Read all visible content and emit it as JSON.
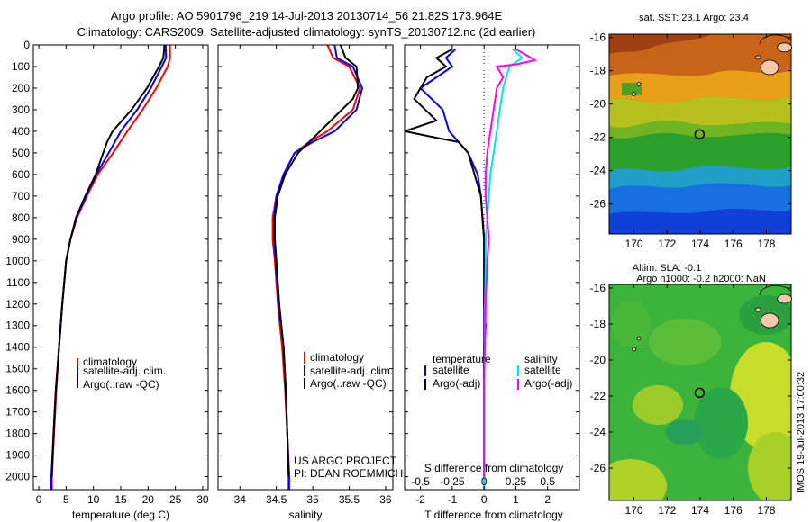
{
  "title_line1": "Argo profile: AO 5901796_219 14-Jul-2013 20130714_56 21.82S 173.964E",
  "title_line2": "Climatology: CARS2009. Satellite-adjusted climatology: synTS_20130712.nc (2d earlier)",
  "side_timestamp": "IMOS 19-Jul-2013 17:00:32",
  "colors": {
    "climatology": "#ff0000",
    "satellite": "#0000ff",
    "argo": "#000000",
    "sal_satellite": "#00e5e5",
    "sal_argo": "#ff00ff",
    "marker": "#000000"
  },
  "chart_data": [
    {
      "type": "line",
      "id": "temperature",
      "xlabel": "temperature (deg C)",
      "ylabel": "",
      "xlim": [
        -1,
        31
      ],
      "ylim": [
        2060,
        0
      ],
      "xticks": [
        0,
        5,
        10,
        15,
        20,
        25,
        30
      ],
      "yticks": [
        0,
        100,
        200,
        300,
        400,
        500,
        600,
        700,
        800,
        900,
        1000,
        1100,
        1200,
        1300,
        1400,
        1500,
        1600,
        1700,
        1800,
        1900,
        2000
      ],
      "legend": [
        "climatology",
        "satellite-adj. clim.",
        "Argo(..raw -QC)"
      ],
      "series": [
        {
          "name": "climatology",
          "color": "#ff0000",
          "points": [
            [
              24.0,
              0
            ],
            [
              24.0,
              60
            ],
            [
              23.6,
              100
            ],
            [
              21.5,
              200
            ],
            [
              19.0,
              300
            ],
            [
              16.2,
              400
            ],
            [
              13.6,
              500
            ],
            [
              10.8,
              600
            ],
            [
              8.8,
              700
            ],
            [
              7.0,
              800
            ],
            [
              5.8,
              900
            ],
            [
              5.0,
              1000
            ],
            [
              4.3,
              1200
            ],
            [
              3.7,
              1400
            ],
            [
              3.2,
              1600
            ],
            [
              2.8,
              1800
            ],
            [
              2.4,
              2000
            ],
            [
              2.4,
              2060
            ]
          ]
        },
        {
          "name": "satellite-adj. clim.",
          "color": "#0000ff",
          "points": [
            [
              23.2,
              0
            ],
            [
              23.3,
              60
            ],
            [
              22.5,
              100
            ],
            [
              20.5,
              200
            ],
            [
              18.0,
              300
            ],
            [
              15.0,
              400
            ],
            [
              12.8,
              500
            ],
            [
              10.5,
              600
            ],
            [
              8.6,
              700
            ],
            [
              6.9,
              800
            ],
            [
              5.8,
              900
            ],
            [
              5.0,
              1000
            ],
            [
              4.3,
              1200
            ],
            [
              3.7,
              1400
            ],
            [
              3.1,
              1600
            ],
            [
              2.7,
              1800
            ],
            [
              2.3,
              2000
            ],
            [
              2.3,
              2060
            ]
          ]
        },
        {
          "name": "Argo(..raw -QC)",
          "color": "#000000",
          "points": [
            [
              23.0,
              0
            ],
            [
              22.8,
              60
            ],
            [
              22.0,
              100
            ],
            [
              19.8,
              200
            ],
            [
              17.0,
              300
            ],
            [
              13.5,
              400
            ],
            [
              12.5,
              450
            ],
            [
              10.4,
              600
            ],
            [
              8.5,
              700
            ],
            [
              6.8,
              800
            ],
            [
              5.8,
              900
            ],
            [
              5.0,
              1000
            ],
            [
              4.3,
              1200
            ],
            [
              3.7,
              1400
            ],
            [
              3.1,
              1600
            ],
            [
              2.7,
              1800
            ],
            [
              2.4,
              2000
            ]
          ]
        }
      ]
    },
    {
      "type": "line",
      "id": "salinity",
      "xlabel": "salinity",
      "ylabel": "",
      "xlim": [
        33.7,
        36.1
      ],
      "ylim": [
        2060,
        0
      ],
      "xticks": [
        34,
        34.5,
        35,
        35.5,
        36
      ],
      "xticklabels": [
        "34",
        "34.5",
        "35",
        "35.5",
        "36"
      ],
      "legend": [
        "climatology",
        "satellite-adj. clim.",
        "Argo(..raw -QC)"
      ],
      "annotation": [
        "US ARGO PROJECT",
        "PI: DEAN ROEMMICH"
      ],
      "series": [
        {
          "name": "climatology",
          "color": "#ff0000",
          "points": [
            [
              35.2,
              0
            ],
            [
              35.28,
              60
            ],
            [
              35.5,
              100
            ],
            [
              35.65,
              200
            ],
            [
              35.55,
              300
            ],
            [
              35.2,
              400
            ],
            [
              34.95,
              450
            ],
            [
              34.75,
              500
            ],
            [
              34.6,
              600
            ],
            [
              34.5,
              700
            ],
            [
              34.45,
              800
            ],
            [
              34.45,
              900
            ],
            [
              34.48,
              1000
            ],
            [
              34.52,
              1200
            ],
            [
              34.58,
              1400
            ],
            [
              34.62,
              1600
            ],
            [
              34.65,
              1800
            ],
            [
              34.68,
              2000
            ],
            [
              34.68,
              2060
            ]
          ]
        },
        {
          "name": "satellite-adj. clim.",
          "color": "#0000ff",
          "points": [
            [
              35.3,
              0
            ],
            [
              35.33,
              60
            ],
            [
              35.55,
              100
            ],
            [
              35.68,
              200
            ],
            [
              35.6,
              300
            ],
            [
              35.3,
              400
            ],
            [
              35.0,
              450
            ],
            [
              34.75,
              500
            ],
            [
              34.6,
              600
            ],
            [
              34.5,
              700
            ],
            [
              34.47,
              800
            ],
            [
              34.47,
              900
            ],
            [
              34.49,
              1000
            ],
            [
              34.53,
              1200
            ],
            [
              34.6,
              1400
            ],
            [
              34.63,
              1600
            ],
            [
              34.65,
              1800
            ],
            [
              34.67,
              2000
            ],
            [
              34.67,
              2060
            ]
          ]
        },
        {
          "name": "Argo(..raw -QC)",
          "color": "#000000",
          "points": [
            [
              35.38,
              0
            ],
            [
              35.45,
              60
            ],
            [
              35.6,
              100
            ],
            [
              35.62,
              200
            ],
            [
              35.55,
              250
            ],
            [
              35.4,
              300
            ],
            [
              35.1,
              400
            ],
            [
              34.8,
              500
            ],
            [
              34.62,
              600
            ],
            [
              34.52,
              700
            ],
            [
              34.48,
              800
            ],
            [
              34.48,
              900
            ],
            [
              34.5,
              1000
            ],
            [
              34.54,
              1200
            ],
            [
              34.6,
              1400
            ],
            [
              34.63,
              1600
            ],
            [
              34.65,
              1800
            ],
            [
              34.67,
              2000
            ]
          ]
        }
      ]
    },
    {
      "type": "line",
      "id": "difference",
      "xlabel": "T difference from climatology",
      "xlabel_top": "S difference from climatology",
      "ylabel": "",
      "xlim": [
        -2.5,
        3.0
      ],
      "ylim": [
        2060,
        0
      ],
      "xticks": [
        -2,
        -1,
        0,
        1,
        2
      ],
      "xticks_top": [
        -0.5,
        -0.25,
        0,
        0.25,
        0.5
      ],
      "xticklabels_top": [
        "-0.5",
        "-0.25",
        "0",
        "0.25",
        "0.5"
      ],
      "s_scale": 0.25,
      "legend_temperature_title": "temperature",
      "legend_salinity_title": "salinity",
      "legend": [
        "satellite",
        "Argo(-adj)",
        "satellite",
        "Argo(-adj)"
      ],
      "series": [
        {
          "name": "satellite",
          "group": "temperature",
          "color": "#0000ff",
          "points": [
            [
              -0.9,
              20
            ],
            [
              -1.2,
              60
            ],
            [
              -1.0,
              100
            ],
            [
              -1.5,
              150
            ],
            [
              -2.0,
              200
            ],
            [
              -1.3,
              300
            ],
            [
              -1.1,
              400
            ],
            [
              -0.5,
              500
            ],
            [
              -0.2,
              600
            ],
            [
              -0.1,
              700
            ],
            [
              -0.05,
              800
            ],
            [
              0,
              900
            ],
            [
              0,
              1000
            ],
            [
              0,
              1200
            ],
            [
              0,
              1400
            ],
            [
              0,
              1600
            ],
            [
              0,
              1800
            ],
            [
              0,
              2000
            ],
            [
              0,
              2060
            ]
          ]
        },
        {
          "name": "Argo(-adj)",
          "group": "temperature",
          "color": "#000000",
          "points": [
            [
              -1.0,
              20
            ],
            [
              -1.5,
              60
            ],
            [
              -1.2,
              100
            ],
            [
              -1.8,
              150
            ],
            [
              -2.2,
              250
            ],
            [
              -1.5,
              350
            ],
            [
              -2.5,
              400
            ],
            [
              -1.5,
              430
            ],
            [
              -0.8,
              450
            ],
            [
              -0.5,
              500
            ],
            [
              -0.3,
              600
            ],
            [
              -0.1,
              700
            ],
            [
              -0.05,
              800
            ],
            [
              0,
              900
            ],
            [
              0,
              1000
            ],
            [
              0,
              1200
            ],
            [
              0.05,
              1300
            ],
            [
              0,
              1400
            ],
            [
              0,
              1600
            ],
            [
              0,
              1800
            ],
            [
              0,
              2000
            ]
          ]
        },
        {
          "name": "satellite",
          "group": "salinity",
          "color": "#00e5e5",
          "points": [
            [
              0.9,
              20
            ],
            [
              1.2,
              60
            ],
            [
              0.8,
              100
            ],
            [
              0.6,
              200
            ],
            [
              0.5,
              300
            ],
            [
              0.4,
              400
            ],
            [
              0.3,
              500
            ],
            [
              0.2,
              600
            ],
            [
              0.15,
              700
            ],
            [
              0.1,
              800
            ],
            [
              0.05,
              900
            ],
            [
              0.05,
              1000
            ],
            [
              0.03,
              1200
            ],
            [
              0.02,
              1400
            ],
            [
              0,
              1600
            ],
            [
              0,
              1800
            ],
            [
              0,
              2000
            ],
            [
              0,
              2060
            ]
          ]
        },
        {
          "name": "Argo(-adj)",
          "group": "salinity",
          "color": "#ff00ff",
          "points": [
            [
              1.0,
              20
            ],
            [
              1.6,
              70
            ],
            [
              1.0,
              90
            ],
            [
              0.4,
              100
            ],
            [
              0.6,
              150
            ],
            [
              0.4,
              200
            ],
            [
              0.3,
              300
            ],
            [
              0.2,
              400
            ],
            [
              0.1,
              500
            ],
            [
              0.05,
              600
            ],
            [
              0.05,
              700
            ],
            [
              0.1,
              800
            ],
            [
              0.15,
              900
            ],
            [
              0.1,
              1000
            ],
            [
              0.05,
              1200
            ],
            [
              0.02,
              1400
            ],
            [
              0,
              1600
            ],
            [
              0,
              1800
            ],
            [
              0,
              2000
            ]
          ]
        }
      ]
    },
    {
      "type": "heatmap",
      "id": "sst_map",
      "title": "sat. SST: 23.1 Argo: 23.4",
      "xlim": [
        168.5,
        179.5
      ],
      "ylim": [
        -27.8,
        -15.8
      ],
      "xticks": [
        170,
        172,
        174,
        176,
        178
      ],
      "yticks": [
        -16,
        -18,
        -20,
        -22,
        -24,
        -26
      ],
      "marker": {
        "lon": 173.964,
        "lat": -21.82
      }
    },
    {
      "type": "heatmap",
      "id": "sla_map",
      "title_line1": "Altim. SLA: -0.1",
      "title_line2": "Argo h1000: -0.2 h2000: NaN",
      "xlim": [
        168.5,
        179.5
      ],
      "ylim": [
        -27.8,
        -15.8
      ],
      "xticks": [
        170,
        172,
        174,
        176,
        178
      ],
      "yticks": [
        -16,
        -18,
        -20,
        -22,
        -24,
        -26
      ],
      "marker": {
        "lon": 173.964,
        "lat": -21.82
      }
    }
  ]
}
